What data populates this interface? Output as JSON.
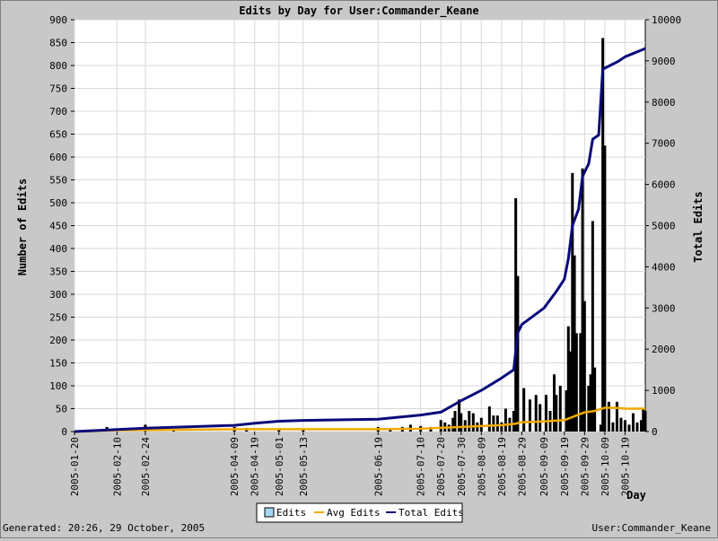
{
  "chart_data": {
    "type": "bar",
    "title": "Edits by Day for User:Commander_Keane",
    "ylabel_left": "Number of Edits",
    "ylabel_right": "Total Edits",
    "xlabel": "Day",
    "ylim_left": [
      0,
      900
    ],
    "ylim_right": [
      0,
      10000
    ],
    "yticks_left": [
      0,
      50,
      100,
      150,
      200,
      250,
      300,
      350,
      400,
      450,
      500,
      550,
      600,
      650,
      700,
      750,
      800,
      850,
      900
    ],
    "yticks_right": [
      0,
      1000,
      2000,
      3000,
      4000,
      5000,
      6000,
      7000,
      8000,
      9000,
      10000
    ],
    "x_start": "2005-01-20",
    "x_end": "2005-10-29",
    "xtick_labels": [
      "2005-01-20",
      "2005-02-10",
      "2005-02-24",
      "2005-04-09",
      "2005-04-19",
      "2005-05-01",
      "2005-05-13",
      "2005-06-19",
      "2005-07-10",
      "2005-07-20",
      "2005-07-30",
      "2005-08-09",
      "2005-08-19",
      "2005-08-29",
      "2005-09-09",
      "2005-09-19",
      "2005-09-29",
      "2005-10-09",
      "2005-10-19"
    ],
    "grid": true,
    "legend": "bottom-center",
    "series": [
      {
        "name": "Edits",
        "type": "bar",
        "axis": "left",
        "color": "#000000",
        "points": [
          [
            "2005-02-05",
            10
          ],
          [
            "2005-02-24",
            15
          ],
          [
            "2005-03-10",
            5
          ],
          [
            "2005-04-09",
            10
          ],
          [
            "2005-04-15",
            8
          ],
          [
            "2005-05-01",
            5
          ],
          [
            "2005-05-13",
            5
          ],
          [
            "2005-06-19",
            10
          ],
          [
            "2005-06-25",
            8
          ],
          [
            "2005-07-01",
            10
          ],
          [
            "2005-07-05",
            15
          ],
          [
            "2005-07-10",
            12
          ],
          [
            "2005-07-15",
            10
          ],
          [
            "2005-07-20",
            25
          ],
          [
            "2005-07-22",
            20
          ],
          [
            "2005-07-24",
            15
          ],
          [
            "2005-07-26",
            30
          ],
          [
            "2005-07-27",
            45
          ],
          [
            "2005-07-29",
            70
          ],
          [
            "2005-07-30",
            40
          ],
          [
            "2005-08-01",
            25
          ],
          [
            "2005-08-03",
            45
          ],
          [
            "2005-08-05",
            40
          ],
          [
            "2005-08-07",
            20
          ],
          [
            "2005-08-09",
            30
          ],
          [
            "2005-08-13",
            55
          ],
          [
            "2005-08-15",
            35
          ],
          [
            "2005-08-17",
            35
          ],
          [
            "2005-08-19",
            20
          ],
          [
            "2005-08-21",
            50
          ],
          [
            "2005-08-23",
            30
          ],
          [
            "2005-08-25",
            45
          ],
          [
            "2005-08-26",
            510
          ],
          [
            "2005-08-27",
            340
          ],
          [
            "2005-08-30",
            95
          ],
          [
            "2005-09-02",
            70
          ],
          [
            "2005-09-05",
            80
          ],
          [
            "2005-09-07",
            60
          ],
          [
            "2005-09-10",
            80
          ],
          [
            "2005-09-12",
            45
          ],
          [
            "2005-09-14",
            125
          ],
          [
            "2005-09-15",
            80
          ],
          [
            "2005-09-17",
            100
          ],
          [
            "2005-09-20",
            90
          ],
          [
            "2005-09-21",
            230
          ],
          [
            "2005-09-22",
            175
          ],
          [
            "2005-09-23",
            565
          ],
          [
            "2005-09-24",
            385
          ],
          [
            "2005-09-25",
            215
          ],
          [
            "2005-09-27",
            215
          ],
          [
            "2005-09-28",
            575
          ],
          [
            "2005-09-29",
            285
          ],
          [
            "2005-10-01",
            100
          ],
          [
            "2005-10-02",
            125
          ],
          [
            "2005-10-03",
            460
          ],
          [
            "2005-10-04",
            140
          ],
          [
            "2005-10-07",
            15
          ],
          [
            "2005-10-08",
            860
          ],
          [
            "2005-10-09",
            625
          ],
          [
            "2005-10-11",
            65
          ],
          [
            "2005-10-13",
            20
          ],
          [
            "2005-10-15",
            65
          ],
          [
            "2005-10-17",
            30
          ],
          [
            "2005-10-19",
            25
          ],
          [
            "2005-10-21",
            15
          ],
          [
            "2005-10-23",
            40
          ],
          [
            "2005-10-25",
            20
          ],
          [
            "2005-10-27",
            25
          ],
          [
            "2005-10-28",
            50
          ],
          [
            "2005-10-29",
            45
          ]
        ]
      },
      {
        "name": "Avg Edits",
        "type": "line",
        "axis": "left",
        "color": "#f2a900",
        "points": [
          [
            "2005-01-20",
            0
          ],
          [
            "2005-02-10",
            3
          ],
          [
            "2005-03-10",
            4
          ],
          [
            "2005-04-09",
            5
          ],
          [
            "2005-05-13",
            5
          ],
          [
            "2005-06-19",
            5
          ],
          [
            "2005-07-10",
            6
          ],
          [
            "2005-07-20",
            8
          ],
          [
            "2005-07-30",
            10
          ],
          [
            "2005-08-09",
            12
          ],
          [
            "2005-08-19",
            14
          ],
          [
            "2005-08-26",
            17
          ],
          [
            "2005-08-28",
            20
          ],
          [
            "2005-09-09",
            22
          ],
          [
            "2005-09-19",
            25
          ],
          [
            "2005-09-25",
            35
          ],
          [
            "2005-09-29",
            42
          ],
          [
            "2005-10-04",
            45
          ],
          [
            "2005-10-09",
            52
          ],
          [
            "2005-10-14",
            52
          ],
          [
            "2005-10-19",
            50
          ],
          [
            "2005-10-29",
            50
          ]
        ]
      },
      {
        "name": "Total Edits",
        "type": "line",
        "axis": "right",
        "color": "#0a0a7a",
        "points": [
          [
            "2005-01-20",
            0
          ],
          [
            "2005-02-10",
            50
          ],
          [
            "2005-02-24",
            80
          ],
          [
            "2005-04-09",
            150
          ],
          [
            "2005-04-19",
            200
          ],
          [
            "2005-05-01",
            250
          ],
          [
            "2005-05-13",
            270
          ],
          [
            "2005-06-19",
            300
          ],
          [
            "2005-07-10",
            400
          ],
          [
            "2005-07-20",
            470
          ],
          [
            "2005-07-30",
            750
          ],
          [
            "2005-08-09",
            1000
          ],
          [
            "2005-08-19",
            1300
          ],
          [
            "2005-08-25",
            1500
          ],
          [
            "2005-08-27",
            2400
          ],
          [
            "2005-08-29",
            2600
          ],
          [
            "2005-09-09",
            3000
          ],
          [
            "2005-09-15",
            3400
          ],
          [
            "2005-09-19",
            3700
          ],
          [
            "2005-09-21",
            4200
          ],
          [
            "2005-09-23",
            5000
          ],
          [
            "2005-09-26",
            5400
          ],
          [
            "2005-09-28",
            6200
          ],
          [
            "2005-10-01",
            6500
          ],
          [
            "2005-10-03",
            7100
          ],
          [
            "2005-10-06",
            7200
          ],
          [
            "2005-10-08",
            8800
          ],
          [
            "2005-10-12",
            8900
          ],
          [
            "2005-10-16",
            9000
          ],
          [
            "2005-10-19",
            9100
          ],
          [
            "2005-10-24",
            9200
          ],
          [
            "2005-10-29",
            9300
          ]
        ]
      }
    ]
  },
  "footer": {
    "generated": "Generated: 20:26, 29 October, 2005",
    "user": "User:Commander_Keane"
  }
}
